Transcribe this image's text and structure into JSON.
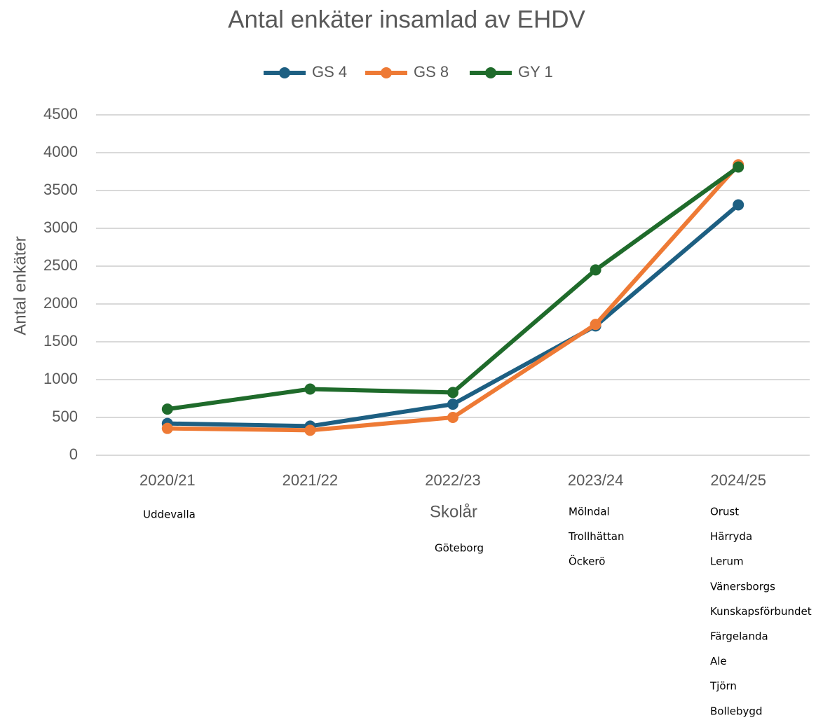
{
  "chart_data": {
    "type": "line",
    "title": "Antal enkäter insamlad av EHDV",
    "x_label": "Skolår",
    "y_label": "Antal enkäter",
    "categories": [
      "2020/21",
      "2021/22",
      "2022/23",
      "2023/24",
      "2024/25"
    ],
    "series": [
      {
        "name": "GS 4",
        "color": "#1d5f82",
        "values": [
          420,
          385,
          675,
          1710,
          3310
        ]
      },
      {
        "name": "GS 8",
        "color": "#ee7a35",
        "values": [
          355,
          330,
          500,
          1730,
          3840
        ]
      },
      {
        "name": "GY 1",
        "color": "#1f6b2b",
        "values": [
          610,
          875,
          830,
          2450,
          3810
        ]
      }
    ],
    "ylim": [
      0,
      4500
    ],
    "yticks": [
      0,
      500,
      1000,
      1500,
      2000,
      2500,
      3000,
      3500,
      4000,
      4500
    ],
    "grid": true,
    "legend": "top",
    "annotations": [
      [
        "Uddevalla"
      ],
      [],
      [
        "Göteborg"
      ],
      [
        "Mölndal",
        "Trollhättan",
        "Öckerö"
      ],
      [
        "Orust",
        "Härryda",
        "Lerum",
        "Vänersborgs",
        "Kunskapsförbundet",
        "Färgelanda",
        "Ale",
        "Tjörn",
        "Bollebygd"
      ]
    ]
  }
}
